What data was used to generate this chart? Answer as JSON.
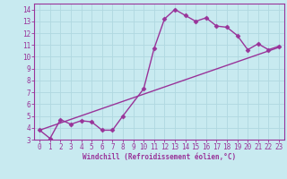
{
  "xlabel": "Windchill (Refroidissement éolien,°C)",
  "xlim": [
    -0.5,
    23.5
  ],
  "ylim": [
    3,
    14.5
  ],
  "xticks": [
    0,
    1,
    2,
    3,
    4,
    5,
    6,
    7,
    8,
    9,
    10,
    11,
    12,
    13,
    14,
    15,
    16,
    17,
    18,
    19,
    20,
    21,
    22,
    23
  ],
  "yticks": [
    3,
    4,
    5,
    6,
    7,
    8,
    9,
    10,
    11,
    12,
    13,
    14
  ],
  "background_color": "#c8eaf0",
  "grid_color": "#b0d8e0",
  "line_color": "#993399",
  "line1_x": [
    0,
    1,
    2,
    3,
    4,
    5,
    6,
    7,
    8,
    10,
    11,
    12,
    13,
    14,
    15,
    16,
    17,
    18,
    19,
    20,
    21,
    22,
    23
  ],
  "line1_y": [
    3.8,
    3.1,
    4.7,
    4.3,
    4.6,
    4.5,
    3.8,
    3.8,
    5.0,
    7.3,
    10.7,
    13.2,
    14.0,
    13.5,
    13.0,
    13.3,
    12.6,
    12.5,
    11.8,
    10.6,
    11.1,
    10.6,
    10.9
  ],
  "line2_x": [
    0,
    23
  ],
  "line2_y": [
    3.8,
    10.8
  ],
  "marker": "D",
  "markersize": 2.5,
  "linewidth": 1.0,
  "tick_fontsize": 5.5,
  "xlabel_fontsize": 5.5
}
